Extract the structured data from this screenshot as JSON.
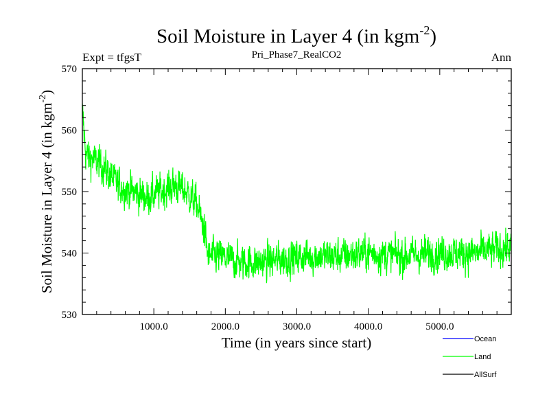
{
  "chart_data": {
    "type": "line",
    "title_main": "Soil Moisture in Layer 4 (in kgm",
    "title_sup": "-2",
    "title_close": ")",
    "subtitle_left": "Expt = tfgsT",
    "subtitle_center": "Pri_Phase7_RealCO2",
    "subtitle_right": "Ann",
    "xlabel": "Time (in years since start)",
    "ylabel_main": "Soil Moisture in Layer 4 (in kgm",
    "ylabel_sup": "-2",
    "ylabel_close": ")",
    "xlim": [
      0,
      6000
    ],
    "ylim": [
      530,
      570
    ],
    "x_ticks": [
      1000,
      2000,
      3000,
      4000,
      5000
    ],
    "x_tick_labels": [
      "1000.0",
      "2000.0",
      "3000.0",
      "4000.0",
      "5000.0"
    ],
    "y_ticks": [
      530,
      540,
      550,
      560,
      570
    ],
    "y_tick_labels": [
      "530",
      "540",
      "550",
      "560",
      "570"
    ],
    "trend": [
      [
        0,
        563
      ],
      [
        50,
        556
      ],
      [
        300,
        554
      ],
      [
        500,
        551
      ],
      [
        700,
        550
      ],
      [
        900,
        549
      ],
      [
        1100,
        550
      ],
      [
        1300,
        551
      ],
      [
        1450,
        550
      ],
      [
        1600,
        548
      ],
      [
        1700,
        544
      ],
      [
        1760,
        539.5
      ],
      [
        1900,
        539.5
      ],
      [
        2200,
        538.5
      ],
      [
        2500,
        538.5
      ],
      [
        2800,
        539
      ],
      [
        3200,
        539.5
      ],
      [
        3600,
        539.5
      ],
      [
        4000,
        540
      ],
      [
        4500,
        539.5
      ],
      [
        5000,
        540
      ],
      [
        5500,
        540
      ],
      [
        6000,
        541
      ]
    ],
    "noise_amplitude": 2.4,
    "legend": [
      {
        "name": "Ocean",
        "color": "#0000ff"
      },
      {
        "name": "Land",
        "color": "#00ff00"
      },
      {
        "name": "AllSurf",
        "color": "#000000"
      }
    ],
    "series": [
      {
        "name": "Land",
        "color": "#00ff00"
      }
    ]
  }
}
